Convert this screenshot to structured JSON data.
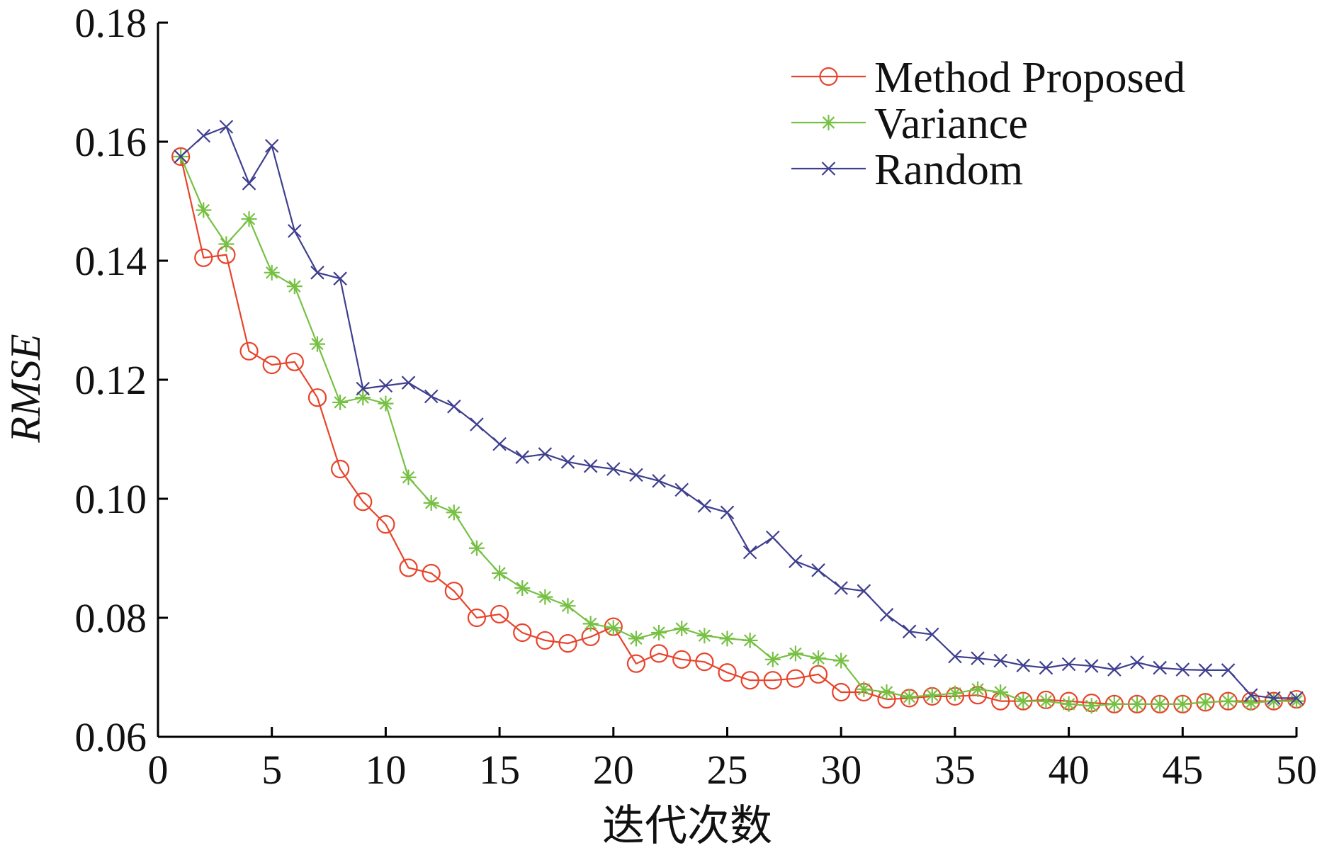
{
  "chart_data": {
    "type": "line",
    "xlabel": "迭代次数",
    "ylabel": "RMSE",
    "xlim": [
      0,
      50
    ],
    "ylim": [
      0.06,
      0.18
    ],
    "xticks": [
      "0",
      "5",
      "10",
      "15",
      "20",
      "25",
      "30",
      "35",
      "40",
      "45",
      "50"
    ],
    "yticks": [
      "0.06",
      "0.08",
      "0.10",
      "0.12",
      "0.14",
      "0.16",
      "0.18"
    ],
    "grid": false,
    "legend": "top-right",
    "series": [
      {
        "name": "Method Proposed",
        "color": "#e8432a",
        "marker": "circle",
        "x": [
          1,
          2,
          3,
          4,
          5,
          6,
          7,
          8,
          9,
          10,
          11,
          12,
          13,
          14,
          15,
          16,
          17,
          18,
          19,
          20,
          21,
          22,
          23,
          24,
          25,
          26,
          27,
          28,
          29,
          30,
          31,
          32,
          33,
          34,
          35,
          36,
          37,
          38,
          39,
          40,
          41,
          42,
          43,
          44,
          45,
          46,
          47,
          48,
          49,
          50
        ],
        "y": [
          0.1575,
          0.1405,
          0.141,
          0.1248,
          0.1225,
          0.123,
          0.117,
          0.105,
          0.0995,
          0.0957,
          0.0884,
          0.0875,
          0.0845,
          0.08,
          0.0806,
          0.0775,
          0.0762,
          0.0757,
          0.0768,
          0.0785,
          0.0723,
          0.074,
          0.073,
          0.0726,
          0.0708,
          0.0695,
          0.0695,
          0.0698,
          0.0705,
          0.0675,
          0.0675,
          0.0663,
          0.0665,
          0.0668,
          0.0668,
          0.067,
          0.066,
          0.066,
          0.0662,
          0.066,
          0.0657,
          0.0655,
          0.0655,
          0.0655,
          0.0655,
          0.0658,
          0.066,
          0.066,
          0.066,
          0.0663
        ]
      },
      {
        "name": "Variance",
        "color": "#76c043",
        "marker": "star",
        "x": [
          1,
          2,
          3,
          4,
          5,
          6,
          7,
          8,
          9,
          10,
          11,
          12,
          13,
          14,
          15,
          16,
          17,
          18,
          19,
          20,
          21,
          22,
          23,
          24,
          25,
          26,
          27,
          28,
          29,
          30,
          31,
          32,
          33,
          34,
          35,
          36,
          37,
          38,
          39,
          40,
          41,
          42,
          43,
          44,
          45,
          46,
          47,
          48,
          49,
          50
        ],
        "y": [
          0.1575,
          0.1485,
          0.1428,
          0.147,
          0.138,
          0.1357,
          0.126,
          0.1162,
          0.117,
          0.116,
          0.1036,
          0.0993,
          0.0977,
          0.0917,
          0.0875,
          0.085,
          0.0835,
          0.082,
          0.079,
          0.0783,
          0.0765,
          0.0775,
          0.0782,
          0.077,
          0.0765,
          0.0762,
          0.073,
          0.074,
          0.0732,
          0.0728,
          0.068,
          0.0675,
          0.0667,
          0.067,
          0.0673,
          0.068,
          0.0675,
          0.066,
          0.066,
          0.0655,
          0.0652,
          0.0655,
          0.0655,
          0.0655,
          0.0655,
          0.0658,
          0.066,
          0.0657,
          0.066,
          0.066
        ]
      },
      {
        "name": "Random",
        "color": "#3f3f8f",
        "marker": "x",
        "x": [
          1,
          2,
          3,
          4,
          5,
          6,
          7,
          8,
          9,
          10,
          11,
          12,
          13,
          14,
          15,
          16,
          17,
          18,
          19,
          20,
          21,
          22,
          23,
          24,
          25,
          26,
          27,
          28,
          29,
          30,
          31,
          32,
          33,
          34,
          35,
          36,
          37,
          38,
          39,
          40,
          41,
          42,
          43,
          44,
          45,
          46,
          47,
          48,
          49,
          50
        ],
        "y": [
          0.1575,
          0.161,
          0.1625,
          0.153,
          0.1593,
          0.145,
          0.138,
          0.137,
          0.1185,
          0.119,
          0.1195,
          0.1172,
          0.1155,
          0.1125,
          0.1092,
          0.107,
          0.1075,
          0.1062,
          0.1055,
          0.105,
          0.104,
          0.103,
          0.1015,
          0.0988,
          0.0977,
          0.091,
          0.0935,
          0.0895,
          0.088,
          0.085,
          0.0845,
          0.0805,
          0.0777,
          0.0772,
          0.0735,
          0.0732,
          0.0728,
          0.072,
          0.0716,
          0.0722,
          0.0719,
          0.0713,
          0.0725,
          0.0716,
          0.0713,
          0.0712,
          0.0712,
          0.067,
          0.0665,
          0.0665
        ]
      }
    ]
  }
}
